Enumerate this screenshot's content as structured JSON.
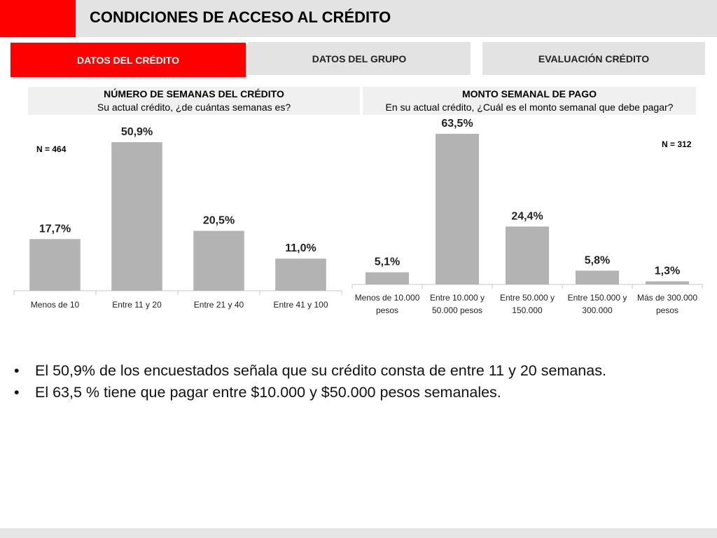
{
  "header": {
    "title": "CONDICIONES DE ACCESO AL CRÉDITO"
  },
  "tabs": [
    {
      "label": "DATOS DEL CRÉDITO",
      "active": true
    },
    {
      "label": "DATOS DEL GRUPO",
      "active": false
    },
    {
      "label": "EVALUACIÓN CRÉDITO",
      "active": false
    }
  ],
  "questions": {
    "left": {
      "title": "NÚMERO DE SEMANAS DEL CRÉDITO",
      "text": "Su actual crédito, ¿de cuántas semanas es?"
    },
    "right": {
      "title": "MONTO SEMANAL DE PAGO",
      "text": "En su actual crédito, ¿Cuál es el monto semanal que debe pagar?"
    }
  },
  "colors": {
    "accent": "#ff0000",
    "bar": "#b3b3b3",
    "panel": "#e3e3e3"
  },
  "chart_data": [
    {
      "type": "bar",
      "sample_size_label": "N = 464",
      "categories": [
        [
          "Menos de 10"
        ],
        [
          "Entre 11 y 20"
        ],
        [
          "Entre 21 y 40"
        ],
        [
          "Entre 41 y 100"
        ]
      ],
      "values": [
        17.7,
        50.9,
        20.5,
        11.0
      ],
      "value_labels": [
        "17,7%",
        "50,9%",
        "20,5%",
        "11,0%"
      ],
      "ylim": [
        0,
        60
      ]
    },
    {
      "type": "bar",
      "sample_size_label": "N = 312",
      "categories": [
        [
          "Menos de 10.000",
          "pesos"
        ],
        [
          "Entre 10.000 y",
          "50.000 pesos"
        ],
        [
          "Entre 50.000 y",
          "150.000"
        ],
        [
          "Entre 150.000 y",
          "300.000"
        ],
        [
          "Más de 300.000",
          "pesos"
        ]
      ],
      "values": [
        5.1,
        63.5,
        24.4,
        5.8,
        1.3
      ],
      "value_labels": [
        "5,1%",
        "63,5%",
        "24,4%",
        "5,8%",
        "1,3%"
      ],
      "ylim": [
        0,
        70
      ]
    }
  ],
  "bullets": [
    "El 50,9% de los encuestados señala que su crédito consta de entre 11 y 20 semanas.",
    "El 63,5 % tiene que pagar entre $10.000 y $50.000 pesos semanales."
  ],
  "bullet_symbol": "•"
}
